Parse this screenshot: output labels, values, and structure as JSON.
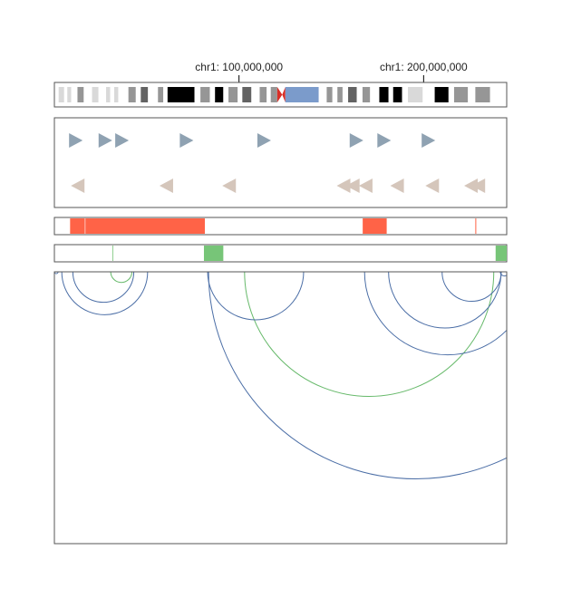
{
  "ideogram": {
    "chromosome": "chr1",
    "tick_labels": [
      {
        "label": "chr1: 100,000,000",
        "position_bp": 100000000
      },
      {
        "label": "chr1: 200,000,000",
        "position_bp": 200000000
      }
    ],
    "bands": [
      {
        "start_bp": 0,
        "end_bp": 2300000,
        "stain": "gneg"
      },
      {
        "start_bp": 2300000,
        "end_bp": 5300000,
        "stain": "gpos25"
      },
      {
        "start_bp": 5300000,
        "end_bp": 7000000,
        "stain": "gneg"
      },
      {
        "start_bp": 7000000,
        "end_bp": 9100000,
        "stain": "gpos25"
      },
      {
        "start_bp": 9100000,
        "end_bp": 12500000,
        "stain": "gneg"
      },
      {
        "start_bp": 12500000,
        "end_bp": 15900000,
        "stain": "gpos50"
      },
      {
        "start_bp": 15900000,
        "end_bp": 20400000,
        "stain": "gneg"
      },
      {
        "start_bp": 20400000,
        "end_bp": 23900000,
        "stain": "gpos25"
      },
      {
        "start_bp": 23900000,
        "end_bp": 28000000,
        "stain": "gneg"
      },
      {
        "start_bp": 28000000,
        "end_bp": 30200000,
        "stain": "gpos25"
      },
      {
        "start_bp": 30200000,
        "end_bp": 32400000,
        "stain": "gneg"
      },
      {
        "start_bp": 32400000,
        "end_bp": 34600000,
        "stain": "gpos25"
      },
      {
        "start_bp": 34600000,
        "end_bp": 40100000,
        "stain": "gneg"
      },
      {
        "start_bp": 40100000,
        "end_bp": 44100000,
        "stain": "gpos50"
      },
      {
        "start_bp": 44100000,
        "end_bp": 46800000,
        "stain": "gneg"
      },
      {
        "start_bp": 46800000,
        "end_bp": 50700000,
        "stain": "gpos75"
      },
      {
        "start_bp": 50700000,
        "end_bp": 56100000,
        "stain": "gneg"
      },
      {
        "start_bp": 56100000,
        "end_bp": 59000000,
        "stain": "gpos50"
      },
      {
        "start_bp": 59000000,
        "end_bp": 61300000,
        "stain": "gneg"
      },
      {
        "start_bp": 61300000,
        "end_bp": 75900000,
        "stain": "gpos100"
      },
      {
        "start_bp": 75900000,
        "end_bp": 79100000,
        "stain": "gneg"
      },
      {
        "start_bp": 79100000,
        "end_bp": 84200000,
        "stain": "gpos50"
      },
      {
        "start_bp": 84200000,
        "end_bp": 87000000,
        "stain": "gneg"
      },
      {
        "start_bp": 87000000,
        "end_bp": 91500000,
        "stain": "gpos100"
      },
      {
        "start_bp": 91500000,
        "end_bp": 94300000,
        "stain": "gneg"
      },
      {
        "start_bp": 94300000,
        "end_bp": 99300000,
        "stain": "gpos50"
      },
      {
        "start_bp": 99300000,
        "end_bp": 101800000,
        "stain": "gneg"
      },
      {
        "start_bp": 101800000,
        "end_bp": 106700000,
        "stain": "gpos75"
      },
      {
        "start_bp": 106700000,
        "end_bp": 111200000,
        "stain": "gneg"
      },
      {
        "start_bp": 111200000,
        "end_bp": 115000000,
        "stain": "gpos50"
      },
      {
        "start_bp": 115000000,
        "end_bp": 117200000,
        "stain": "gneg"
      },
      {
        "start_bp": 117200000,
        "end_bp": 120700000,
        "stain": "gpos50"
      },
      {
        "start_bp": 120700000,
        "end_bp": 123400000,
        "stain": "acen_p"
      },
      {
        "start_bp": 123400000,
        "end_bp": 125100000,
        "stain": "acen_q"
      },
      {
        "start_bp": 125100000,
        "end_bp": 143200000,
        "stain": "gvar"
      },
      {
        "start_bp": 143200000,
        "end_bp": 147500000,
        "stain": "gneg"
      },
      {
        "start_bp": 147500000,
        "end_bp": 150600000,
        "stain": "gpos50"
      },
      {
        "start_bp": 150600000,
        "end_bp": 153300000,
        "stain": "gneg"
      },
      {
        "start_bp": 153300000,
        "end_bp": 156100000,
        "stain": "gpos50"
      },
      {
        "start_bp": 156100000,
        "end_bp": 159100000,
        "stain": "gneg"
      },
      {
        "start_bp": 159100000,
        "end_bp": 163800000,
        "stain": "gpos75"
      },
      {
        "start_bp": 163800000,
        "end_bp": 166900000,
        "stain": "gneg"
      },
      {
        "start_bp": 166900000,
        "end_bp": 171000000,
        "stain": "gpos50"
      },
      {
        "start_bp": 171000000,
        "end_bp": 176000000,
        "stain": "gneg"
      },
      {
        "start_bp": 176000000,
        "end_bp": 181000000,
        "stain": "gpos100"
      },
      {
        "start_bp": 181000000,
        "end_bp": 183500000,
        "stain": "gneg"
      },
      {
        "start_bp": 183500000,
        "end_bp": 188300000,
        "stain": "gpos100"
      },
      {
        "start_bp": 188300000,
        "end_bp": 191500000,
        "stain": "gneg"
      },
      {
        "start_bp": 191500000,
        "end_bp": 199500000,
        "stain": "gpos25"
      },
      {
        "start_bp": 199500000,
        "end_bp": 206000000,
        "stain": "gneg"
      },
      {
        "start_bp": 206000000,
        "end_bp": 213500000,
        "stain": "gpos100"
      },
      {
        "start_bp": 213500000,
        "end_bp": 216500000,
        "stain": "gneg"
      },
      {
        "start_bp": 216500000,
        "end_bp": 224000000,
        "stain": "gpos50"
      },
      {
        "start_bp": 224000000,
        "end_bp": 228000000,
        "stain": "gneg"
      },
      {
        "start_bp": 228000000,
        "end_bp": 236000000,
        "stain": "gpos50"
      },
      {
        "start_bp": 236000000,
        "end_bp": 245000000,
        "stain": "gneg"
      }
    ],
    "chrom_length_bp": 245000000,
    "stain_colors": {
      "gneg": "#ffffff",
      "gpos25": "#d9d9d9",
      "gpos50": "#969696",
      "gpos75": "#636363",
      "gpos100": "#000000",
      "gvar": "#7b9bcb",
      "acen_p": "#d92f27",
      "acen_q": "#d92f27"
    }
  },
  "gene_track": {
    "forward_color": "#8fa2b2",
    "reverse_color": "#d5c6bb",
    "forward_genes_bp": [
      5000000,
      21000000,
      30000000,
      65000000,
      107000000,
      157000000,
      172000000,
      196000000
    ],
    "reverse_genes_bp": [
      6000000,
      54000000,
      88000000,
      150000000,
      155000000,
      162000000,
      179000000,
      198000000,
      219000000,
      223000000
    ]
  },
  "region_track_1": {
    "color": "#ff6347",
    "regions_bp": [
      [
        8500000,
        16500000
      ],
      [
        16800000,
        81500000
      ],
      [
        167000000,
        180000000
      ],
      [
        228000000,
        228500000
      ]
    ]
  },
  "region_track_2": {
    "color": "#77c578",
    "regions_bp": [
      [
        81000000,
        91500000
      ],
      [
        239000000,
        245000000
      ],
      [
        31500000,
        31700000
      ]
    ]
  },
  "arc_track": {
    "blue_color": "#4b6ea6",
    "green_color": "#66b96a",
    "blue_arcs": [
      {
        "start_bp": 0,
        "end_bp": 2000000
      },
      {
        "start_bp": 10000000,
        "end_bp": 43000000
      },
      {
        "start_bp": 4000000,
        "end_bp": 50500000
      },
      {
        "start_bp": 83000000,
        "end_bp": 135000000
      },
      {
        "start_bp": 83500000,
        "end_bp": 308000000
      },
      {
        "start_bp": 168000000,
        "end_bp": 258000000
      },
      {
        "start_bp": 181000000,
        "end_bp": 242000000
      },
      {
        "start_bp": 210000000,
        "end_bp": 242000000
      },
      {
        "start_bp": 241500000,
        "end_bp": 246000000
      }
    ],
    "green_arcs": [
      {
        "start_bp": 30500000,
        "end_bp": 42000000
      },
      {
        "start_bp": 103000000,
        "end_bp": 238000000
      }
    ]
  }
}
